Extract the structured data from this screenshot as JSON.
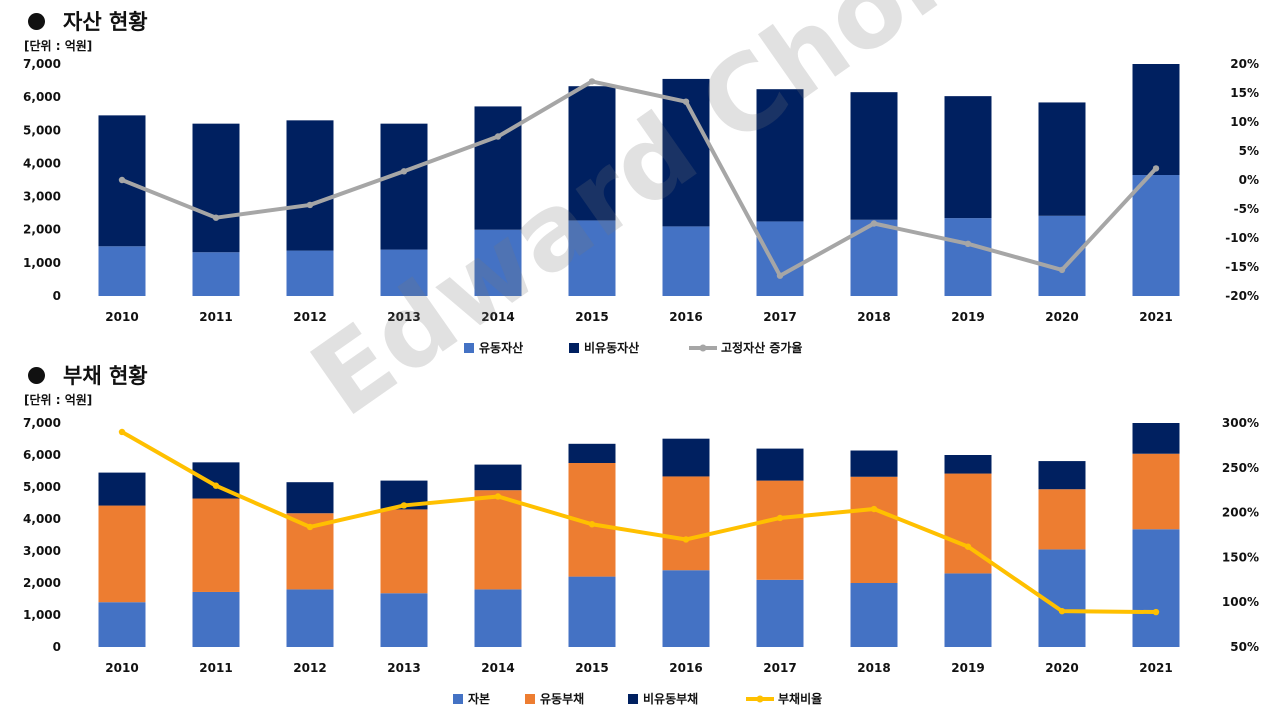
{
  "watermark": "Edward Choi",
  "colors": {
    "current_asset": "#4472c4",
    "noncurrent_asset": "#002060",
    "growth_line": "#a6a6a6",
    "capital": "#4472c4",
    "current_liab": "#ed7d31",
    "noncurrent_liab": "#002060",
    "debt_line": "#ffc000"
  },
  "section1": {
    "title": "자산 현황",
    "unit": "[단위 : 억원]"
  },
  "section2": {
    "title": "부채 현황",
    "unit": "[단위 : 억원]"
  },
  "chart_data": [
    {
      "type": "bar",
      "stacked": true,
      "title": "자산 현황",
      "unit": "[단위 : 억원]",
      "categories": [
        "2010",
        "2011",
        "2012",
        "2013",
        "2014",
        "2015",
        "2016",
        "2017",
        "2018",
        "2019",
        "2020",
        "2021"
      ],
      "series": [
        {
          "name": "유동자산",
          "values": [
            1500,
            1320,
            1370,
            1400,
            2000,
            2280,
            2100,
            2250,
            2300,
            2350,
            2420,
            3650
          ]
        },
        {
          "name": "비유동자산",
          "values": [
            3950,
            3880,
            3930,
            3800,
            3720,
            4050,
            4450,
            3990,
            3850,
            3680,
            3420,
            3350
          ]
        }
      ],
      "line_series": {
        "name": "고정자산 증가율",
        "axis": "right",
        "values": [
          0,
          -6.5,
          -4.3,
          1.5,
          7.5,
          17,
          13.5,
          -16.5,
          -7.5,
          -11,
          -15.5,
          2
        ]
      },
      "ylim": [
        0,
        7000
      ],
      "yticks": [
        "0",
        "1,000",
        "2,000",
        "3,000",
        "4,000",
        "5,000",
        "6,000",
        "7,000"
      ],
      "y2lim": [
        -20,
        20
      ],
      "y2ticks": [
        "-20%",
        "-15%",
        "-10%",
        "-5%",
        "0%",
        "5%",
        "10%",
        "15%",
        "20%"
      ],
      "legend": [
        "유동자산",
        "비유동자산",
        "고정자산 증가율"
      ]
    },
    {
      "type": "bar",
      "stacked": true,
      "title": "부채 현황",
      "unit": "[단위 : 억원]",
      "categories": [
        "2010",
        "2011",
        "2012",
        "2013",
        "2014",
        "2015",
        "2016",
        "2017",
        "2018",
        "2019",
        "2020",
        "2021"
      ],
      "series": [
        {
          "name": "자본",
          "values": [
            1400,
            1720,
            1800,
            1680,
            1800,
            2200,
            2400,
            2100,
            2000,
            2300,
            3050,
            3680
          ]
        },
        {
          "name": "유동부채",
          "values": [
            3020,
            2920,
            2380,
            2620,
            3100,
            3550,
            2930,
            3100,
            3320,
            3120,
            1880,
            2360
          ]
        },
        {
          "name": "비유동부채",
          "values": [
            1030,
            1130,
            970,
            900,
            800,
            600,
            1180,
            1000,
            820,
            580,
            880,
            960
          ]
        }
      ],
      "line_series": {
        "name": "부채비율",
        "axis": "right",
        "values": [
          290,
          230,
          184,
          208,
          218,
          187,
          170,
          194,
          204,
          162,
          90,
          89
        ]
      },
      "ylim": [
        0,
        7000
      ],
      "yticks": [
        "0",
        "1,000",
        "2,000",
        "3,000",
        "4,000",
        "5,000",
        "6,000",
        "7,000"
      ],
      "y2lim": [
        50,
        300
      ],
      "y2ticks": [
        "50%",
        "100%",
        "150%",
        "200%",
        "250%",
        "300%"
      ],
      "legend": [
        "자본",
        "유동부채",
        "비유동부채",
        "부채비율"
      ]
    }
  ]
}
